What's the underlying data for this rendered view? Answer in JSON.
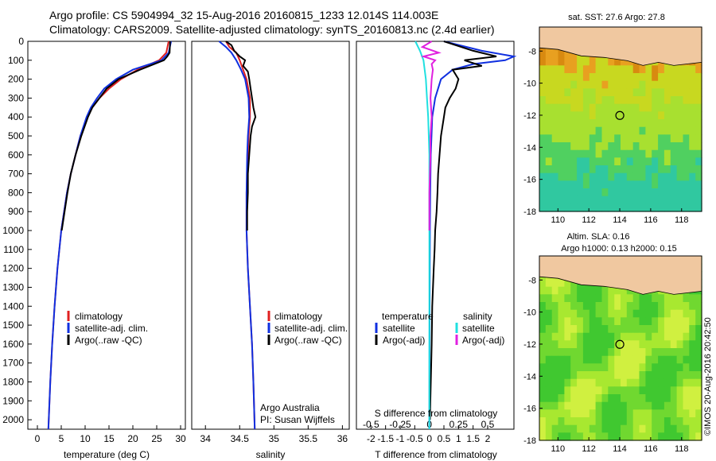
{
  "header": {
    "line1": "Argo profile: CS 5904994_32 15-Aug-2016 20160815_1233 12.014S 114.003E",
    "line2": "Climatology: CARS2009. Satellite-adjusted climatology: synTS_20160813.nc (2.4d earlier)"
  },
  "colors": {
    "climatology": "#e02020",
    "satellite": "#1030e0",
    "argo": "#000000",
    "sat_salinity": "#20e0e0",
    "argo_salinity": "#e020e0",
    "land": "#f0c8a0"
  },
  "depth_axis": {
    "ticks": [
      "0",
      "100",
      "200",
      "300",
      "400",
      "500",
      "600",
      "700",
      "800",
      "900",
      "1000",
      "1100",
      "1200",
      "1300",
      "1400",
      "1500",
      "1600",
      "1700",
      "1800",
      "1900",
      "2000"
    ],
    "range": [
      0,
      2050
    ]
  },
  "chart_data": [
    {
      "type": "line",
      "xlabel": "temperature (deg C)",
      "xticks": [
        "0",
        "5",
        "10",
        "15",
        "20",
        "25",
        "30"
      ],
      "xlim": [
        -2,
        31
      ],
      "legend": [
        "climatology",
        "satellite-adj. clim.",
        "Argo(..raw -QC)"
      ],
      "series": [
        {
          "name": "climatology",
          "depth": [
            0,
            60,
            100,
            150,
            200,
            250,
            300,
            350,
            400,
            500,
            600,
            700,
            800,
            900,
            1000,
            1200,
            1400,
            1600,
            1800,
            2050
          ],
          "values": [
            27.5,
            27.0,
            25.5,
            21.0,
            17.5,
            15.0,
            13.0,
            11.5,
            10.5,
            9.0,
            8.0,
            7.0,
            6.2,
            5.6,
            5.0,
            4.2,
            3.6,
            3.1,
            2.7,
            2.3
          ]
        },
        {
          "name": "satellite-adj. clim.",
          "depth": [
            0,
            60,
            100,
            150,
            200,
            250,
            300,
            350,
            400,
            500,
            600,
            700,
            800,
            900,
            1000,
            1200,
            1400,
            1600,
            1800,
            2050
          ],
          "values": [
            28.0,
            27.5,
            26.0,
            20.0,
            16.5,
            14.0,
            12.5,
            11.2,
            10.3,
            9.0,
            8.0,
            7.0,
            6.2,
            5.6,
            5.0,
            4.2,
            3.6,
            3.1,
            2.7,
            2.3
          ]
        },
        {
          "name": "Argo(..raw -QC)",
          "depth": [
            0,
            60,
            80,
            100,
            150,
            200,
            250,
            300,
            350,
            400,
            500,
            600,
            700,
            800,
            900,
            1000
          ],
          "values": [
            27.8,
            27.7,
            27.2,
            26.5,
            21.5,
            17.0,
            14.5,
            13.0,
            11.5,
            10.6,
            9.2,
            8.0,
            7.0,
            6.3,
            5.7,
            5.1
          ]
        }
      ]
    },
    {
      "type": "line",
      "xlabel": "salinity",
      "xticks": [
        "34",
        "34.5",
        "35",
        "35.5",
        "36"
      ],
      "xlim": [
        33.8,
        36.1
      ],
      "legend": [
        "climatology",
        "satellite-adj. clim.",
        "Argo(..raw -QC)"
      ],
      "series": [
        {
          "name": "climatology",
          "depth": [
            0,
            30,
            60,
            100,
            150,
            200,
            300,
            400,
            500,
            600,
            800,
            1000,
            1200,
            1400,
            1600,
            1800,
            2050
          ],
          "values": [
            34.3,
            34.35,
            34.45,
            34.5,
            34.55,
            34.6,
            34.65,
            34.65,
            34.63,
            34.62,
            34.6,
            34.6,
            34.62,
            34.65,
            34.68,
            34.7,
            34.72
          ]
        },
        {
          "name": "satellite-adj. clim.",
          "depth": [
            0,
            30,
            60,
            100,
            150,
            200,
            300,
            400,
            500,
            600,
            800,
            1000,
            1200,
            1400,
            1600,
            1800,
            2050
          ],
          "values": [
            34.2,
            34.3,
            34.38,
            34.45,
            34.52,
            34.58,
            34.63,
            34.64,
            34.62,
            34.61,
            34.6,
            34.6,
            34.62,
            34.65,
            34.68,
            34.7,
            34.72
          ]
        },
        {
          "name": "Argo(..raw -QC)",
          "depth": [
            0,
            20,
            50,
            80,
            100,
            130,
            160,
            200,
            250,
            300,
            350,
            400,
            450,
            500,
            600,
            700,
            800,
            900,
            1000
          ],
          "values": [
            34.3,
            34.38,
            34.42,
            34.5,
            34.58,
            34.55,
            34.62,
            34.64,
            34.66,
            34.68,
            34.7,
            34.73,
            34.68,
            34.66,
            34.64,
            34.62,
            34.62,
            34.61,
            34.61
          ]
        }
      ]
    },
    {
      "type": "line",
      "xlabel": "T difference from climatology",
      "xlabel_top": "S difference from climatology",
      "xticks": [
        "-2",
        "-1.5",
        "-1",
        "-0.5",
        "0",
        "0.5",
        "1",
        "1.5",
        "2"
      ],
      "xticks_top": [
        "-0.5",
        "-0.25",
        "0",
        "0.25",
        "0.5"
      ],
      "xlim": [
        -2.5,
        2.9
      ],
      "legend_titles": [
        "temperature",
        "salinity"
      ],
      "legend": [
        "satellite",
        "Argo(-adj)",
        "satellite",
        "Argo(-adj)"
      ],
      "series": [
        {
          "name": "temperature satellite",
          "depth": [
            0,
            50,
            80,
            100,
            120,
            150,
            200,
            300,
            400,
            600,
            800,
            1000,
            1400,
            2050
          ],
          "values": [
            0.5,
            1.8,
            3.0,
            2.6,
            1.5,
            0.8,
            0.4,
            0.2,
            0.1,
            0.05,
            0.03,
            0.02,
            0.01,
            0.0
          ]
        },
        {
          "name": "temperature Argo(-adj)",
          "depth": [
            0,
            50,
            80,
            100,
            130,
            150,
            200,
            250,
            300,
            350,
            400,
            500,
            600,
            700,
            800,
            900,
            1000,
            1100,
            1200,
            1400,
            1600,
            1800,
            2000
          ],
          "values": [
            0.5,
            1.5,
            2.3,
            1.2,
            1.8,
            0.8,
            1.0,
            0.9,
            0.7,
            0.55,
            0.5,
            0.4,
            0.35,
            0.3,
            0.28,
            0.25,
            0.2,
            0.18,
            0.15,
            0.1,
            0.08,
            0.05,
            0.02
          ]
        },
        {
          "name": "salinity satellite",
          "depth": [
            0,
            50,
            100,
            150,
            200,
            300,
            400,
            600,
            800,
            1000,
            1400,
            2050
          ],
          "values": [
            -0.12,
            -0.08,
            -0.05,
            -0.04,
            -0.03,
            -0.02,
            -0.01,
            0.0,
            0.0,
            0.0,
            0.0,
            0.0
          ]
        },
        {
          "name": "salinity Argo(-adj)",
          "depth": [
            0,
            30,
            60,
            80,
            100,
            120,
            150,
            200,
            300,
            400,
            500,
            600,
            800,
            1000
          ],
          "values": [
            0.02,
            -0.06,
            0.08,
            -0.05,
            0.05,
            0.02,
            0.03,
            0.02,
            0.01,
            0.02,
            0.01,
            0.01,
            0.0,
            0.0
          ]
        }
      ]
    }
  ],
  "maps": {
    "sst": {
      "title": "sat. SST: 27.6 Argo: 27.8",
      "xticks": [
        "110",
        "112",
        "114",
        "116",
        "118"
      ],
      "yticks": [
        "-8",
        "-10",
        "-12",
        "-14",
        "-16",
        "-18"
      ]
    },
    "sla": {
      "title1": "Altim. SLA: 0.16",
      "title2": "Argo h1000: 0.13 h2000: 0.15",
      "xticks": [
        "110",
        "112",
        "114",
        "116",
        "118"
      ],
      "yticks": [
        "-8",
        "-10",
        "-12",
        "-14",
        "-16",
        "-18"
      ]
    }
  },
  "credits": {
    "institution": "Argo Australia",
    "pi": "PI: Susan Wijffels",
    "stamp": "©IMOS 20-Aug-2016 20:42:50"
  }
}
